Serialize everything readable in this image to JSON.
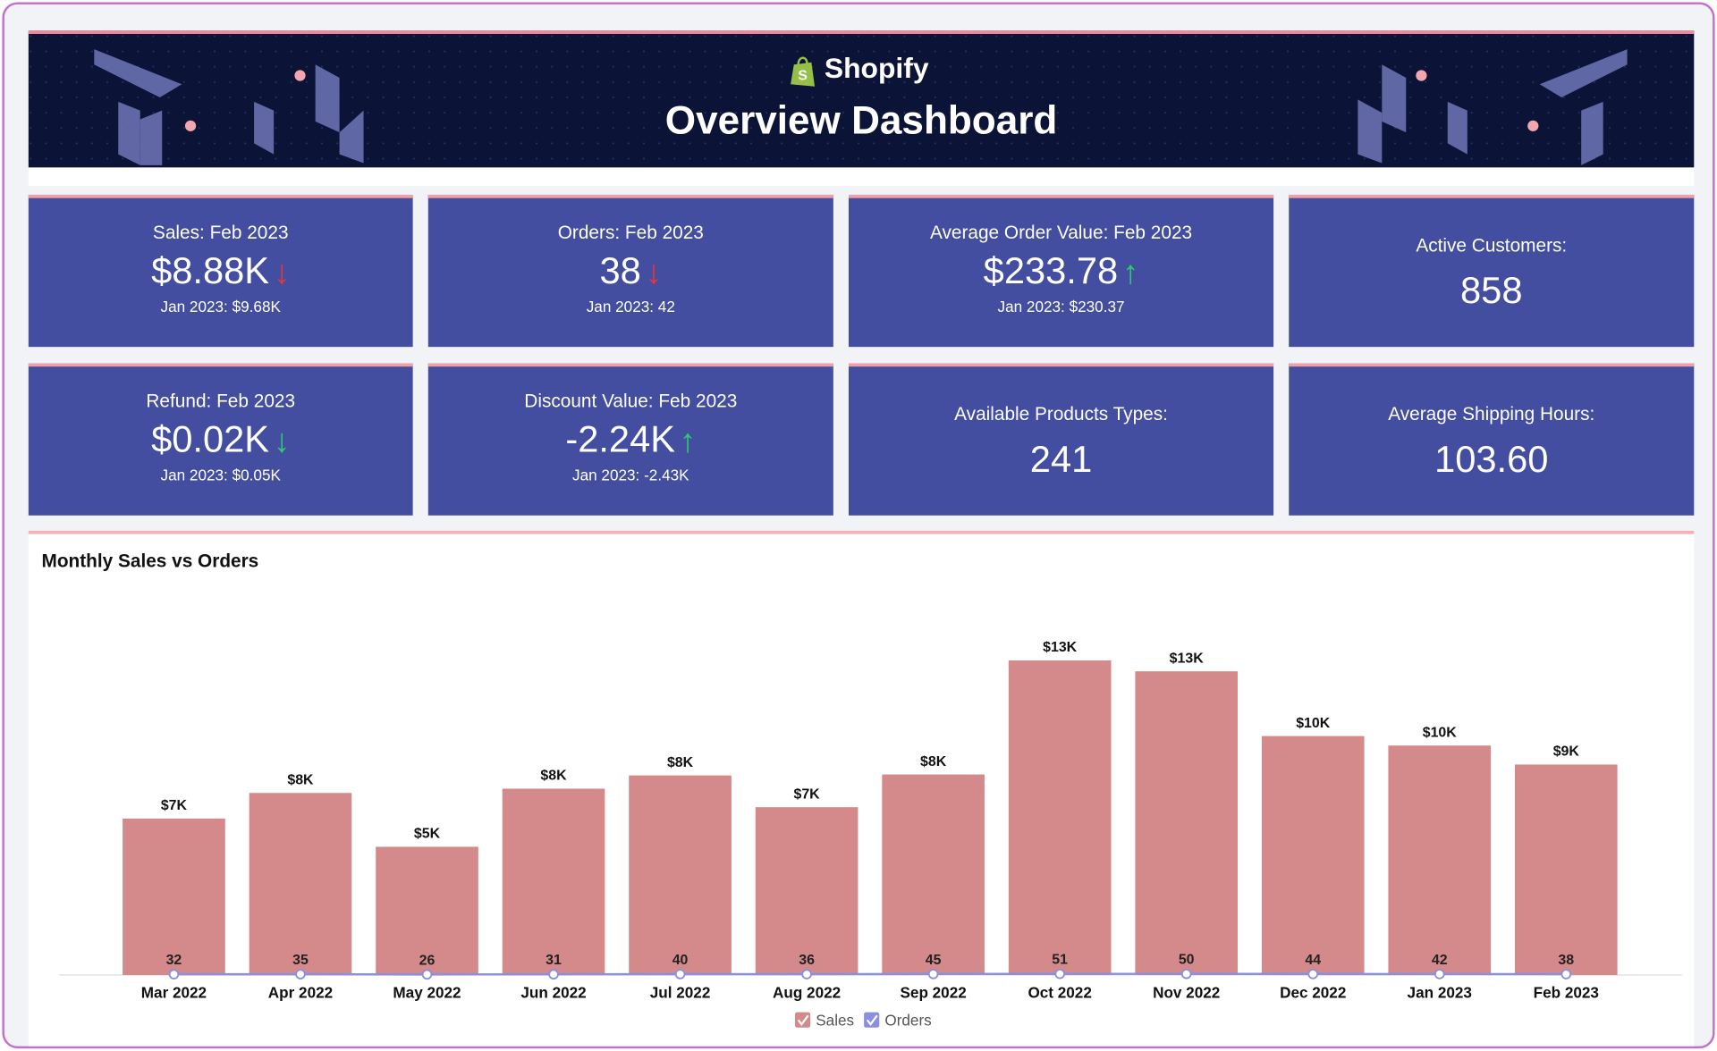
{
  "header": {
    "brand": "Shopify",
    "title": "Overview Dashboard"
  },
  "kpis": [
    {
      "title": "Sales: Feb 2023",
      "value": "$8.88K",
      "arrow": "↓",
      "arrow_color": "#e53935",
      "compare": "Jan 2023: $9.68K"
    },
    {
      "title": "Orders: Feb 2023",
      "value": "38",
      "arrow": "↓",
      "arrow_color": "#e53935",
      "compare": "Jan 2023: 42"
    },
    {
      "title": "Average Order Value: Feb 2023",
      "value": "$233.78",
      "arrow": "↑",
      "arrow_color": "#2ecc71",
      "compare": "Jan 2023: $230.37"
    },
    {
      "title": "Active Customers:",
      "value": "858"
    },
    {
      "title": "Refund: Feb 2023",
      "value": "$0.02K",
      "arrow": "↓",
      "arrow_color": "#2ecc71",
      "compare": "Jan 2023: $0.05K"
    },
    {
      "title": "Discount Value: Feb 2023",
      "value": "-2.24K",
      "arrow": "↑",
      "arrow_color": "#2ecc71",
      "compare": "Jan 2023: -2.43K"
    },
    {
      "title": "Available Products Types:",
      "value": "241"
    },
    {
      "title": "Average Shipping Hours:",
      "value": "103.60"
    }
  ],
  "chart_data": {
    "type": "bar",
    "title": "Monthly Sales vs Orders",
    "categories": [
      "Mar 2022",
      "Apr 2022",
      "May 2022",
      "Jun 2022",
      "Jul 2022",
      "Aug 2022",
      "Sep 2022",
      "Oct 2022",
      "Nov 2022",
      "Dec 2022",
      "Jan 2023",
      "Feb 2023"
    ],
    "series": [
      {
        "name": "Sales",
        "color": "#d4898a",
        "values": [
          6600,
          7680,
          5410,
          7860,
          8420,
          7080,
          8460,
          13270,
          12810,
          10080,
          9680,
          8880
        ],
        "value_labels": [
          "$7K",
          "$8K",
          "$5K",
          "$8K",
          "$8K",
          "$7K",
          "$8K",
          "$13K",
          "$13K",
          "$10K",
          "$10K",
          "$9K"
        ]
      },
      {
        "name": "Orders",
        "color": "#8a8fe0",
        "values": [
          32,
          35,
          26,
          31,
          40,
          36,
          45,
          51,
          50,
          44,
          42,
          38
        ]
      }
    ],
    "ylim": [
      0,
      15000
    ],
    "legend": "bottom"
  }
}
